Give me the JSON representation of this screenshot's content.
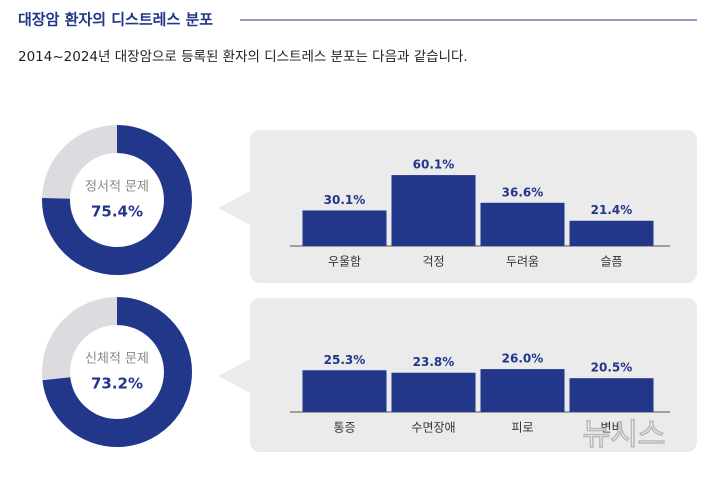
{
  "header": {
    "title": "대장암 환자의 디스트레스 분포",
    "subtitle": "2014~2024년 대장암으로 등록된 환자의 디스트레스 분포는 다음과 같습니다."
  },
  "chart_data": [
    {
      "type": "pie",
      "title": "정서적 문제",
      "values": [
        75.4
      ],
      "value_labels": [
        "75.4%"
      ],
      "color": "#22368a",
      "rest_color": "#dddbe0"
    },
    {
      "type": "bar",
      "categories": [
        "우울함",
        "걱정",
        "두려움",
        "슬픔"
      ],
      "values": [
        30.1,
        60.1,
        36.6,
        21.4
      ],
      "value_labels": [
        "30.1%",
        "60.1%",
        "36.6%",
        "21.4%"
      ],
      "color": "#22368a"
    },
    {
      "type": "pie",
      "title": "신체적 문제",
      "values": [
        73.2
      ],
      "value_labels": [
        "73.2%"
      ],
      "color": "#22368a",
      "rest_color": "#dddbe0"
    },
    {
      "type": "bar",
      "categories": [
        "통증",
        "수면장애",
        "피로",
        "변비"
      ],
      "values": [
        25.3,
        23.8,
        26.0,
        20.5
      ],
      "value_labels": [
        "25.3%",
        "23.8%",
        "26.0%",
        "20.5%"
      ],
      "color": "#22368a"
    }
  ],
  "watermark": "뉴시스"
}
